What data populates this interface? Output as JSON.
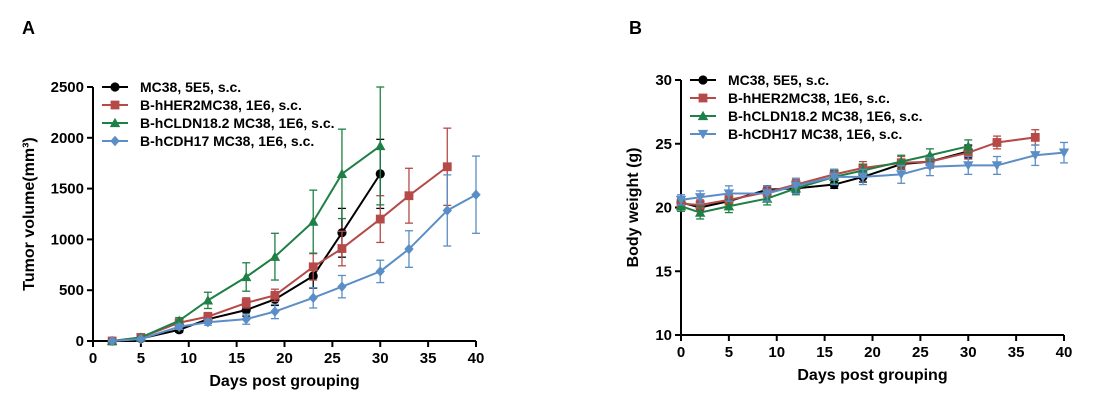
{
  "chart_data": [
    {
      "type": "line",
      "panel": "A",
      "xlabel": "Days post grouping",
      "ylabel": "Tumor volume(mm³)",
      "xlim": [
        0,
        40
      ],
      "ylim": [
        0,
        2500
      ],
      "xticks": [
        0,
        5,
        10,
        15,
        20,
        25,
        30,
        35,
        40
      ],
      "yticks": [
        0,
        500,
        1000,
        1500,
        2000,
        2500
      ],
      "legend": "top-left",
      "series": [
        {
          "name": "MC38, 5E5, s.c.",
          "color": "#000000",
          "marker": "circle",
          "x": [
            2,
            5,
            9,
            12,
            16,
            19,
            23,
            26,
            30
          ],
          "y": [
            0,
            25,
            110,
            215,
            305,
            410,
            640,
            1065,
            1645
          ],
          "err": [
            0,
            10,
            25,
            40,
            60,
            60,
            120,
            240,
            340
          ]
        },
        {
          "name": "B-hHER2MC38, 1E6, s.c.",
          "color": "#b54a48",
          "marker": "square",
          "x": [
            2,
            5,
            9,
            12,
            16,
            19,
            23,
            26,
            30,
            33,
            37
          ],
          "y": [
            0,
            35,
            180,
            240,
            375,
            450,
            730,
            910,
            1200,
            1430,
            1715
          ],
          "err": [
            0,
            10,
            30,
            40,
            50,
            60,
            130,
            170,
            230,
            270,
            380
          ]
        },
        {
          "name": "B-hCLDN18.2 MC38, 1E6, s.c.",
          "color": "#1f8045",
          "marker": "triangle",
          "x": [
            2,
            5,
            9,
            12,
            16,
            19,
            23,
            26,
            30
          ],
          "y": [
            0,
            35,
            200,
            400,
            630,
            830,
            1175,
            1645,
            1920
          ],
          "err": [
            0,
            10,
            30,
            80,
            140,
            230,
            310,
            440,
            580
          ]
        },
        {
          "name": "B-hCDH17 MC38, 1E6, s.c.",
          "color": "#5b8ec7",
          "marker": "diamond",
          "x": [
            2,
            5,
            9,
            12,
            16,
            19,
            23,
            26,
            30,
            33,
            37,
            40
          ],
          "y": [
            0,
            20,
            140,
            185,
            215,
            290,
            425,
            535,
            685,
            905,
            1285,
            1440
          ],
          "err": [
            0,
            8,
            25,
            30,
            50,
            70,
            100,
            110,
            110,
            180,
            350,
            380
          ]
        }
      ]
    },
    {
      "type": "line",
      "panel": "B",
      "xlabel": "Days post grouping",
      "ylabel": "Body weight (g)",
      "xlim": [
        0,
        40
      ],
      "ylim": [
        10,
        30
      ],
      "xticks": [
        0,
        5,
        10,
        15,
        20,
        25,
        30,
        35,
        40
      ],
      "yticks": [
        10,
        15,
        20,
        25,
        30
      ],
      "legend": "top-left",
      "series": [
        {
          "name": "MC38, 5E5, s.c.",
          "color": "#000000",
          "marker": "circle",
          "x": [
            0,
            2,
            5,
            9,
            12,
            16,
            19,
            23,
            26,
            30
          ],
          "y": [
            20.4,
            20.0,
            20.5,
            21.4,
            21.5,
            21.8,
            22.4,
            23.4,
            23.6,
            24.4
          ],
          "err": [
            0.3,
            0.3,
            0.3,
            0.3,
            0.3,
            0.3,
            0.4,
            0.4,
            0.5,
            0.5
          ]
        },
        {
          "name": "B-hHER2MC38, 1E6, s.c.",
          "color": "#b54a48",
          "marker": "square",
          "x": [
            0,
            2,
            5,
            9,
            12,
            16,
            19,
            23,
            26,
            30,
            33,
            37
          ],
          "y": [
            20.3,
            20.2,
            20.6,
            21.2,
            21.8,
            22.6,
            23.1,
            23.5,
            23.6,
            24.3,
            25.1,
            25.5
          ],
          "err": [
            0.4,
            0.4,
            0.4,
            0.4,
            0.4,
            0.4,
            0.5,
            0.5,
            0.5,
            0.5,
            0.5,
            0.6
          ]
        },
        {
          "name": "B-hCLDN18.2 MC38, 1E6, s.c.",
          "color": "#1f8045",
          "marker": "triangle",
          "x": [
            0,
            2,
            5,
            9,
            12,
            16,
            19,
            23,
            26,
            30
          ],
          "y": [
            20.1,
            19.6,
            20.1,
            20.7,
            21.5,
            22.4,
            22.9,
            23.6,
            24.1,
            24.8
          ],
          "err": [
            0.4,
            0.5,
            0.5,
            0.5,
            0.5,
            0.5,
            0.5,
            0.5,
            0.5,
            0.5
          ]
        },
        {
          "name": "B-hCDH17 MC38, 1E6, s.c.",
          "color": "#5b8ec7",
          "marker": "invtriangle",
          "x": [
            0,
            2,
            5,
            9,
            12,
            16,
            19,
            23,
            26,
            30,
            33,
            37,
            40
          ],
          "y": [
            20.6,
            20.8,
            21.1,
            21.1,
            21.7,
            22.4,
            22.4,
            22.6,
            23.2,
            23.3,
            23.3,
            24.1,
            24.3
          ],
          "err": [
            0.4,
            0.5,
            0.6,
            0.6,
            0.6,
            0.6,
            0.6,
            0.7,
            0.7,
            0.7,
            0.7,
            0.8,
            0.8
          ]
        }
      ]
    }
  ]
}
